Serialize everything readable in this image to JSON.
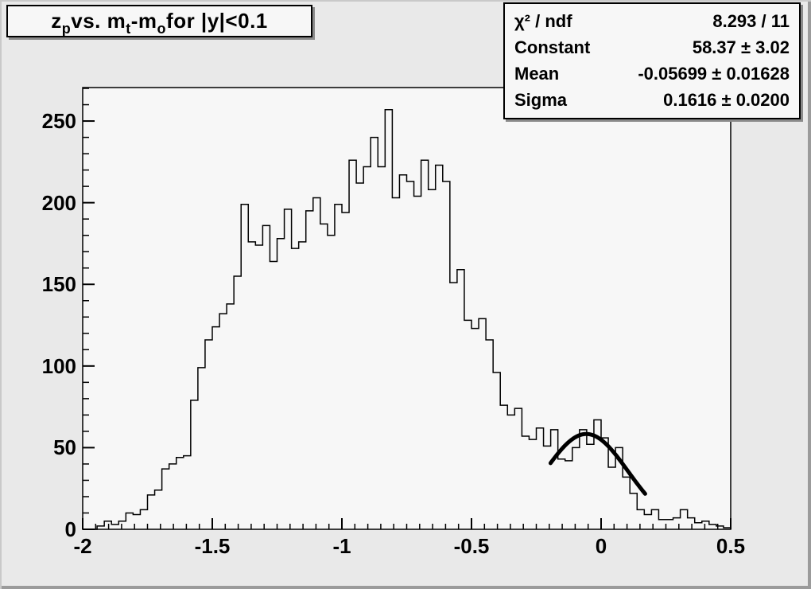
{
  "title": {
    "segments": [
      {
        "text": "z"
      },
      {
        "text": "p",
        "sub": true
      },
      {
        "text": " vs. m"
      },
      {
        "text": "t",
        "sub": true
      },
      {
        "text": "-m"
      },
      {
        "text": "o",
        "sub": true
      },
      {
        "text": " for |y|<0.1"
      }
    ]
  },
  "stats_box": {
    "rows": [
      {
        "label": "χ² / ndf",
        "value": "8.293 / 11"
      },
      {
        "label": "Constant",
        "value": "58.37 ± 3.02"
      },
      {
        "label": "Mean",
        "value": "-0.05699 ± 0.01628"
      },
      {
        "label": "Sigma",
        "value": "0.1616 ± 0.0200"
      }
    ]
  },
  "chart_data": {
    "type": "bar",
    "subtype": "step-histogram",
    "title": "z_p vs. m_t-m_o for |y|<0.1",
    "xlabel": "",
    "ylabel": "",
    "x_range": [
      -2.0,
      0.5
    ],
    "y_range": [
      0,
      270.5
    ],
    "grid": false,
    "bins_start": -2.0,
    "bin_width": 0.0277778,
    "values": [
      0,
      0,
      2,
      5,
      3,
      5,
      10,
      9,
      12,
      21,
      24,
      37,
      40,
      44,
      45,
      79,
      99,
      116,
      124,
      132,
      138,
      155,
      199,
      176,
      174,
      186,
      164,
      178,
      196,
      172,
      176,
      195,
      203,
      187,
      180,
      199,
      194,
      226,
      212,
      222,
      240,
      222,
      257,
      203,
      217,
      213,
      204,
      226,
      208,
      223,
      213,
      151,
      159,
      128,
      123,
      129,
      116,
      96,
      76,
      70,
      74,
      57,
      55,
      62,
      51,
      61,
      43,
      42,
      50,
      61,
      52,
      67,
      56,
      38,
      50,
      32,
      22,
      12,
      9,
      12,
      6,
      6,
      7,
      12,
      7,
      4,
      5,
      3,
      2,
      1
    ],
    "x_ticks": [
      -2,
      -1.5,
      -1,
      -0.5,
      0,
      0.5
    ],
    "x_tick_labels": [
      "-2",
      "-1.5",
      "-1",
      "-0.5",
      "0",
      "0.5"
    ],
    "x_minor_step": 0.05,
    "y_ticks": [
      0,
      50,
      100,
      150,
      200,
      250
    ],
    "y_tick_labels": [
      "0",
      "50",
      "100",
      "150",
      "200",
      "250"
    ],
    "y_minor_step": 10,
    "fit": {
      "type": "gaussian",
      "constant": 58.37,
      "mean": -0.05699,
      "sigma": 0.1616,
      "chi2": 8.293,
      "ndf": 11,
      "draw_range": [
        -0.195,
        0.17
      ]
    },
    "colors": {
      "line": "#000000",
      "fit_line": "#000000",
      "frame_bg": "#f7f7f7",
      "canvas_bg": "#e9e9e9",
      "box_bg": "#f7f7f7"
    }
  }
}
